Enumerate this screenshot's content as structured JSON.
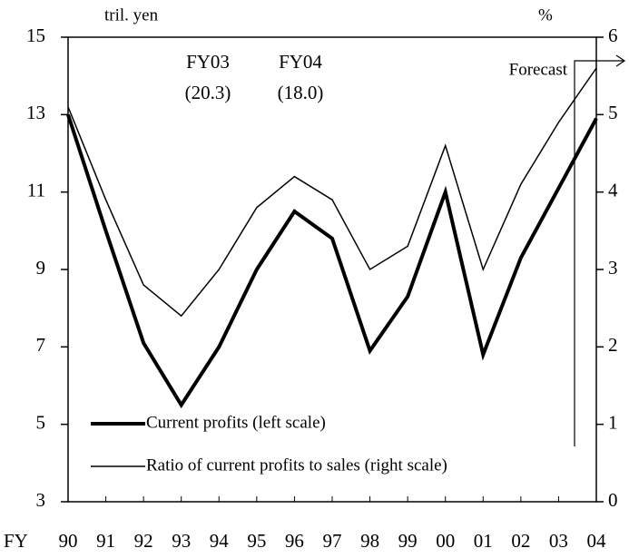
{
  "chart_data": {
    "type": "line",
    "y_label": "tril. yen",
    "y2_label": "%",
    "x_label": "FY",
    "categories": [
      "90",
      "91",
      "92",
      "93",
      "94",
      "95",
      "96",
      "97",
      "98",
      "99",
      "00",
      "01",
      "02",
      "03",
      "04"
    ],
    "series": [
      {
        "name": "Current profits (left scale)",
        "color": "#000000",
        "width": 4,
        "values": [
          13.0,
          10.0,
          7.1,
          5.5,
          7.0,
          9.0,
          10.5,
          9.8,
          6.9,
          8.3,
          11.0,
          6.8,
          9.3,
          11.1,
          12.9
        ]
      },
      {
        "name": "Ratio of current profits to sales (right scale)",
        "color": "#000000",
        "width": 1.5,
        "axis": "y2",
        "values": [
          5.1,
          3.9,
          2.8,
          2.4,
          3.0,
          3.8,
          4.2,
          3.9,
          3.0,
          3.3,
          4.6,
          3.0,
          4.1,
          4.9,
          5.6
        ]
      }
    ],
    "ylim": [
      3,
      15
    ],
    "yticks": [
      3,
      5,
      7,
      9,
      11,
      13,
      15
    ],
    "y2lim": [
      0,
      6
    ],
    "y2ticks": [
      0,
      1,
      2,
      3,
      4,
      5,
      6
    ],
    "annotations": [
      {
        "lines": [
          "FY03",
          "(20.3)"
        ]
      },
      {
        "lines": [
          "FY04",
          "(18.0)"
        ]
      }
    ],
    "forecast_label": "Forecast",
    "grid": false
  }
}
